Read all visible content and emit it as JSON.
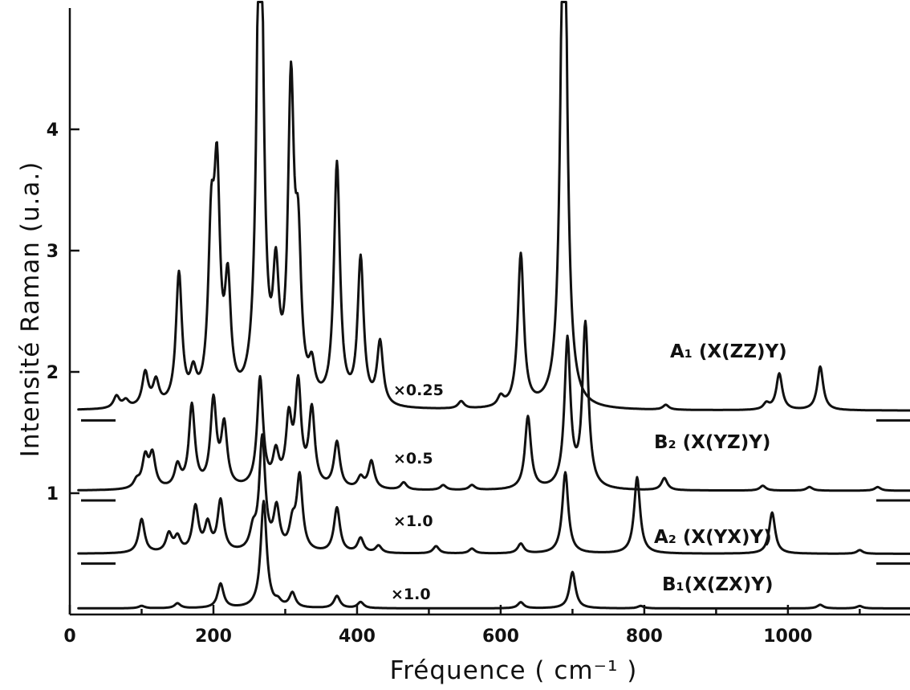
{
  "chart_data": {
    "type": "line",
    "title": "",
    "xlabel": "Fréquence  ( cm⁻¹ )",
    "ylabel": "Intensité Raman (u.a.)",
    "xlim": [
      0,
      1170
    ],
    "ylim": [
      0,
      5
    ],
    "x_ticks": [
      0,
      200,
      400,
      600,
      800,
      1000
    ],
    "y_ticks": [
      1,
      2,
      3,
      4
    ],
    "x_minor_ticks": [
      100,
      300,
      500,
      700,
      900,
      1100
    ],
    "grid": false,
    "legend": "none",
    "series": [
      {
        "name": "A₁ (X(ZZ)Y)",
        "scale_label": "×0.25",
        "baseline": 1.68,
        "peaks": [
          {
            "x": 65,
            "h": 0.1
          },
          {
            "x": 78,
            "h": 0.06
          },
          {
            "x": 105,
            "h": 0.28
          },
          {
            "x": 120,
            "h": 0.2
          },
          {
            "x": 152,
            "h": 1.08
          },
          {
            "x": 172,
            "h": 0.22
          },
          {
            "x": 197,
            "h": 1.27
          },
          {
            "x": 205,
            "h": 1.7
          },
          {
            "x": 220,
            "h": 0.9
          },
          {
            "x": 265,
            "h": 5.0
          },
          {
            "x": 287,
            "h": 0.91
          },
          {
            "x": 308,
            "h": 2.5
          },
          {
            "x": 318,
            "h": 1.13
          },
          {
            "x": 337,
            "h": 0.25
          },
          {
            "x": 372,
            "h": 1.98
          },
          {
            "x": 405,
            "h": 1.2
          },
          {
            "x": 432,
            "h": 0.52
          },
          {
            "x": 545,
            "h": 0.06
          },
          {
            "x": 600,
            "h": 0.08
          },
          {
            "x": 628,
            "h": 1.26
          },
          {
            "x": 688,
            "h": 5.0
          },
          {
            "x": 830,
            "h": 0.04
          },
          {
            "x": 970,
            "h": 0.05
          },
          {
            "x": 988,
            "h": 0.3
          },
          {
            "x": 1045,
            "h": 0.36
          }
        ]
      },
      {
        "name": "B₂ (X(YZ)Y)",
        "scale_label": "×0.5",
        "baseline": 1.02,
        "peaks": [
          {
            "x": 93,
            "h": 0.06
          },
          {
            "x": 105,
            "h": 0.25
          },
          {
            "x": 115,
            "h": 0.27
          },
          {
            "x": 150,
            "h": 0.18
          },
          {
            "x": 170,
            "h": 0.68
          },
          {
            "x": 200,
            "h": 0.71
          },
          {
            "x": 215,
            "h": 0.5
          },
          {
            "x": 265,
            "h": 0.9
          },
          {
            "x": 287,
            "h": 0.26
          },
          {
            "x": 305,
            "h": 0.53
          },
          {
            "x": 318,
            "h": 0.82
          },
          {
            "x": 337,
            "h": 0.63
          },
          {
            "x": 372,
            "h": 0.38
          },
          {
            "x": 405,
            "h": 0.09
          },
          {
            "x": 420,
            "h": 0.23
          },
          {
            "x": 465,
            "h": 0.06
          },
          {
            "x": 520,
            "h": 0.04
          },
          {
            "x": 560,
            "h": 0.04
          },
          {
            "x": 638,
            "h": 0.6
          },
          {
            "x": 693,
            "h": 1.22
          },
          {
            "x": 718,
            "h": 1.35
          },
          {
            "x": 828,
            "h": 0.1
          },
          {
            "x": 965,
            "h": 0.04
          },
          {
            "x": 1030,
            "h": 0.03
          },
          {
            "x": 1125,
            "h": 0.03
          }
        ]
      },
      {
        "name": "A₂ (X(YX)Y)",
        "scale_label": "×1.0",
        "baseline": 0.5,
        "peaks": [
          {
            "x": 100,
            "h": 0.28
          },
          {
            "x": 138,
            "h": 0.15
          },
          {
            "x": 150,
            "h": 0.12
          },
          {
            "x": 175,
            "h": 0.37
          },
          {
            "x": 192,
            "h": 0.22
          },
          {
            "x": 210,
            "h": 0.42
          },
          {
            "x": 255,
            "h": 0.15
          },
          {
            "x": 268,
            "h": 0.93
          },
          {
            "x": 288,
            "h": 0.34
          },
          {
            "x": 310,
            "h": 0.2
          },
          {
            "x": 320,
            "h": 0.61
          },
          {
            "x": 372,
            "h": 0.37
          },
          {
            "x": 405,
            "h": 0.12
          },
          {
            "x": 430,
            "h": 0.06
          },
          {
            "x": 510,
            "h": 0.06
          },
          {
            "x": 560,
            "h": 0.04
          },
          {
            "x": 628,
            "h": 0.08
          },
          {
            "x": 690,
            "h": 0.67
          },
          {
            "x": 790,
            "h": 0.63
          },
          {
            "x": 978,
            "h": 0.34
          },
          {
            "x": 1100,
            "h": 0.03
          }
        ]
      },
      {
        "name": "B₁(X(ZX)Y)",
        "scale_label": "×1.0",
        "baseline": 0.05,
        "peaks": [
          {
            "x": 100,
            "h": 0.02
          },
          {
            "x": 150,
            "h": 0.04
          },
          {
            "x": 210,
            "h": 0.2
          },
          {
            "x": 270,
            "h": 0.88
          },
          {
            "x": 290,
            "h": 0.04
          },
          {
            "x": 310,
            "h": 0.12
          },
          {
            "x": 372,
            "h": 0.1
          },
          {
            "x": 405,
            "h": 0.05
          },
          {
            "x": 628,
            "h": 0.05
          },
          {
            "x": 700,
            "h": 0.3
          },
          {
            "x": 795,
            "h": 0.02
          },
          {
            "x": 1045,
            "h": 0.03
          },
          {
            "x": 1100,
            "h": 0.02
          }
        ]
      }
    ]
  }
}
